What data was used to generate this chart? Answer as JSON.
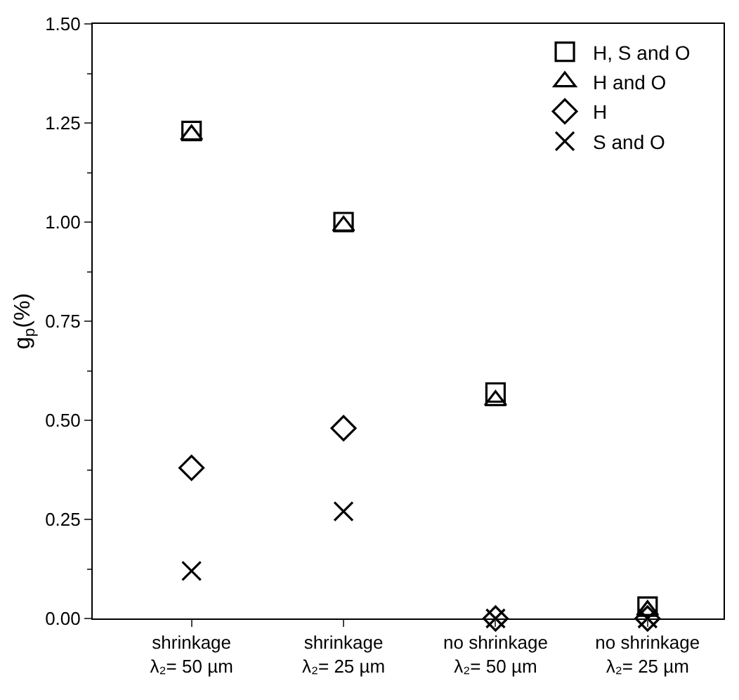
{
  "chart_data": {
    "type": "scatter",
    "ylabel": "g$_{p}$(%)",
    "categories": [
      "shrinkage\nλ₂= 50 µm",
      "shrinkage\nλ₂= 25 µm",
      "no shrinkage\nλ₂= 50 µm",
      "no shrinkage\nλ₂= 25 µm"
    ],
    "series": [
      {
        "name": "H, S and O",
        "color": "#000000",
        "marker": "square",
        "values": [
          1.23,
          1.0,
          0.57,
          0.03
        ]
      },
      {
        "name": "H and O",
        "color": "#000000",
        "marker": "triangle",
        "values": [
          1.22,
          0.99,
          0.55,
          0.02
        ]
      },
      {
        "name": "H",
        "color": "#000000",
        "marker": "diamond",
        "values": [
          0.38,
          0.48,
          0.0,
          0.0
        ]
      },
      {
        "name": "S and O",
        "color": "#000000",
        "marker": "cross",
        "values": [
          0.12,
          0.27,
          0.0,
          0.0
        ]
      }
    ],
    "ylim": [
      0,
      1.5
    ],
    "yticks": [
      {
        "value": 0,
        "label": "0.00"
      },
      {
        "value": 0.125,
        "label": null
      },
      {
        "value": 0.25,
        "label": "0.25"
      },
      {
        "value": 0.375,
        "label": null
      },
      {
        "value": 0.5,
        "label": "0.50"
      },
      {
        "value": 0.625,
        "label": null
      },
      {
        "value": 0.75,
        "label": "0.75"
      },
      {
        "value": 0.875,
        "label": null
      },
      {
        "value": 1.0,
        "label": "1.00"
      },
      {
        "value": 1.125,
        "label": null
      },
      {
        "value": 1.25,
        "label": "1.25"
      },
      {
        "value": 1.375,
        "label": null
      },
      {
        "value": 1.5,
        "label": "1.50"
      }
    ],
    "legend": "top right"
  }
}
